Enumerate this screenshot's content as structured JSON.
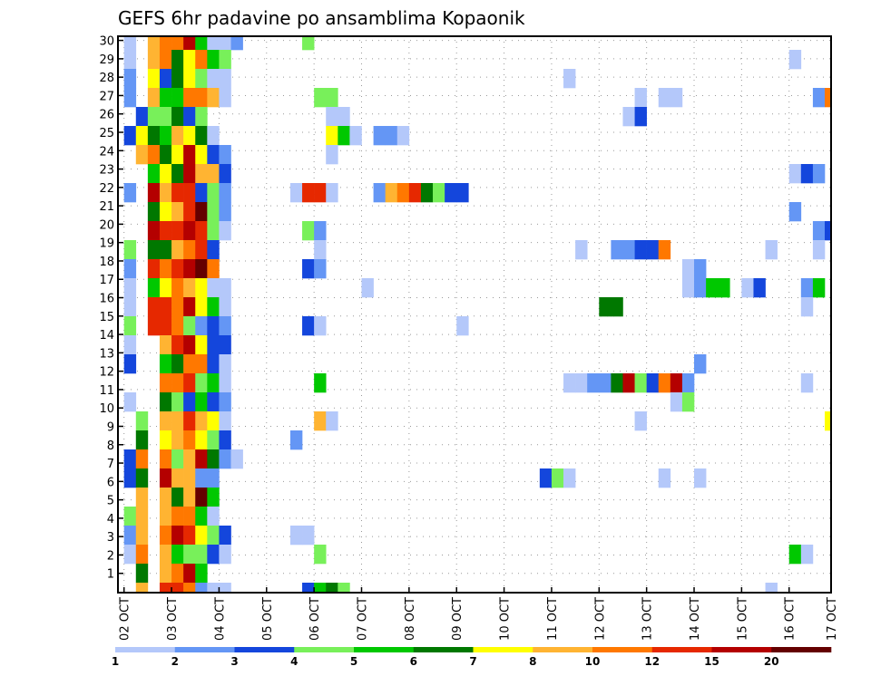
{
  "chart_data": {
    "type": "heatmap",
    "title": "GEFS 6hr padavine po ansamblima Kopaonik",
    "xlabel": "",
    "ylabel": "",
    "time_step_hours": 6,
    "n_columns": 60,
    "x_tick_labels": [
      "02 OCT",
      "03 OCT",
      "04 OCT",
      "05 OCT",
      "06 OCT",
      "07 OCT",
      "08 OCT",
      "09 OCT",
      "10 OCT",
      "11 OCT",
      "12 OCT",
      "13 OCT",
      "14 OCT",
      "15 OCT",
      "16 OCT",
      "17 OCT"
    ],
    "y_tick_labels": [
      "1",
      "2",
      "3",
      "4",
      "5",
      "6",
      "7",
      "8",
      "9",
      "10",
      "11",
      "12",
      "13",
      "14",
      "15",
      "16",
      "17",
      "18",
      "19",
      "20",
      "21",
      "22",
      "23",
      "24",
      "25",
      "26",
      "27",
      "28",
      "29",
      "30"
    ],
    "grid": "dotted",
    "colorbar": {
      "placement": "bottom",
      "levels": [
        "1",
        "2",
        "3",
        "4",
        "5",
        "6",
        "7",
        "8",
        "10",
        "12",
        "15",
        "20"
      ],
      "colors": [
        "#b4c8fa",
        "#6496f5",
        "#1446dc",
        "#78f05a",
        "#00c800",
        "#007800",
        "#ffff00",
        "#ffb432",
        "#ff7800",
        "#e62800",
        "#b40000",
        "#640000"
      ]
    },
    "cell_codes": "1-9,a,b,c = colour-bin index 1..12 (bin k covers levels[k-1]..levels[k]); '.' = below 1",
    "rows_top_to_bottom": [
      {
        "lead": "1.899b5112",
        "extra": [
          [
            15,
            "4"
          ]
        ]
      },
      {
        "lead": "1.8967954",
        "extra": [
          [
            56,
            "1"
          ]
        ]
      },
      {
        "lead": "2.7367411",
        "extra": [
          [
            37,
            "1"
          ]
        ]
      },
      {
        "lead": "2.8559981",
        "extra": [
          [
            16,
            "4"
          ],
          [
            17,
            "4"
          ],
          [
            43,
            "1"
          ],
          [
            45,
            "1"
          ],
          [
            46,
            "1"
          ],
          [
            58,
            "2"
          ],
          [
            59,
            "9"
          ]
        ]
      },
      {
        "lead": ".344634",
        "extra": [
          [
            17,
            "1"
          ],
          [
            18,
            "1"
          ],
          [
            42,
            "1"
          ],
          [
            43,
            "3"
          ]
        ]
      },
      {
        "lead": "37658761",
        "extra": [
          [
            17,
            "7"
          ],
          [
            18,
            "5"
          ],
          [
            19,
            "1"
          ],
          [
            21,
            "2"
          ],
          [
            22,
            "2"
          ],
          [
            23,
            "1"
          ]
        ]
      },
      {
        "lead": ".8967b732",
        "extra": [
          [
            17,
            "1"
          ]
        ]
      },
      {
        "lead": "..576b883",
        "extra": [
          [
            56,
            "1"
          ],
          [
            57,
            "3"
          ],
          [
            58,
            "2"
          ]
        ]
      },
      {
        "lead": "2.b8aa342",
        "extra": [
          [
            14,
            "1"
          ],
          [
            15,
            "a"
          ],
          [
            16,
            "a"
          ],
          [
            17,
            "1"
          ],
          [
            21,
            "2"
          ],
          [
            22,
            "8"
          ],
          [
            23,
            "9"
          ],
          [
            24,
            "a"
          ],
          [
            25,
            "6"
          ],
          [
            26,
            "4"
          ],
          [
            27,
            "3"
          ],
          [
            28,
            "3"
          ]
        ]
      },
      {
        "lead": "..678ac42",
        "extra": [
          [
            56,
            "2"
          ]
        ]
      },
      {
        "lead": "..baaba41",
        "extra": [
          [
            15,
            "4"
          ],
          [
            16,
            "2"
          ],
          [
            58,
            "2"
          ],
          [
            59,
            "3"
          ]
        ]
      },
      {
        "lead": "4.6689a3",
        "extra": [
          [
            16,
            "1"
          ],
          [
            38,
            "1"
          ],
          [
            41,
            "2"
          ],
          [
            42,
            "2"
          ],
          [
            43,
            "3"
          ],
          [
            44,
            "3"
          ],
          [
            45,
            "9"
          ],
          [
            54,
            "1"
          ],
          [
            58,
            "1"
          ]
        ]
      },
      {
        "lead": "2.a9abc9",
        "extra": [
          [
            15,
            "3"
          ],
          [
            16,
            "2"
          ],
          [
            47,
            "1"
          ],
          [
            48,
            "2"
          ]
        ]
      },
      {
        "lead": "1.5798711",
        "extra": [
          [
            20,
            "1"
          ],
          [
            47,
            "1"
          ],
          [
            48,
            "2"
          ],
          [
            49,
            "5"
          ],
          [
            50,
            "5"
          ],
          [
            52,
            "1"
          ],
          [
            53,
            "3"
          ],
          [
            57,
            "2"
          ],
          [
            58,
            "5"
          ]
        ]
      },
      {
        "lead": "1.aa9b751",
        "extra": [
          [
            40,
            "6"
          ],
          [
            41,
            "6"
          ],
          [
            57,
            "1"
          ]
        ]
      },
      {
        "lead": "4.aa94232",
        "extra": [
          [
            15,
            "3"
          ],
          [
            16,
            "1"
          ],
          [
            28,
            "1"
          ]
        ]
      },
      {
        "lead": "1..8ab733",
        "extra": []
      },
      {
        "lead": "3..569931",
        "extra": [
          [
            48,
            "2"
          ]
        ]
      },
      {
        "lead": "...99a451",
        "extra": [
          [
            16,
            "5"
          ],
          [
            37,
            "1"
          ],
          [
            38,
            "1"
          ],
          [
            39,
            "2"
          ],
          [
            40,
            "2"
          ],
          [
            41,
            "6"
          ],
          [
            42,
            "b"
          ],
          [
            43,
            "4"
          ],
          [
            44,
            "3"
          ],
          [
            45,
            "9"
          ],
          [
            46,
            "b"
          ],
          [
            47,
            "2"
          ],
          [
            57,
            "1"
          ]
        ]
      },
      {
        "lead": "1..643532",
        "extra": [
          [
            46,
            "1"
          ],
          [
            47,
            "4"
          ]
        ]
      },
      {
        "lead": ".4.88a871",
        "extra": [
          [
            16,
            "8"
          ],
          [
            17,
            "1"
          ],
          [
            43,
            "1"
          ],
          [
            59,
            "7"
          ]
        ]
      },
      {
        "lead": ".6.789743",
        "extra": [
          [
            14,
            "2"
          ]
        ]
      },
      {
        "lead": "39.948b621",
        "extra": []
      },
      {
        "lead": "36.b8822",
        "extra": [
          [
            35,
            "3"
          ],
          [
            36,
            "4"
          ],
          [
            37,
            "1"
          ],
          [
            45,
            "1"
          ],
          [
            48,
            "1"
          ]
        ]
      },
      {
        "lead": ".8.868c5",
        "extra": []
      },
      {
        "lead": "48.89951",
        "extra": []
      },
      {
        "lead": "28.9ba743",
        "extra": [
          [
            14,
            "1"
          ],
          [
            15,
            "1"
          ]
        ]
      },
      {
        "lead": "19.854431",
        "extra": [
          [
            16,
            "4"
          ],
          [
            56,
            "5"
          ],
          [
            57,
            "1"
          ]
        ]
      },
      {
        "lead": ".6.89b5",
        "extra": []
      },
      {
        "lead": ".8.aa9211",
        "extra": [
          [
            15,
            "3"
          ],
          [
            16,
            "5"
          ],
          [
            17,
            "6"
          ],
          [
            18,
            "4"
          ],
          [
            54,
            "1"
          ]
        ]
      }
    ]
  }
}
